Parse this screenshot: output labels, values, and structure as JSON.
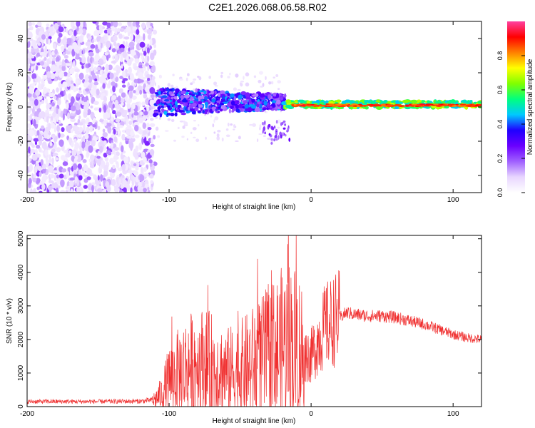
{
  "title": "C2E1.2026.068.06.58.R02",
  "colors": {
    "snr_line": "#f03030",
    "colormap": [
      "#ffffff",
      "#e8d6ff",
      "#a060ff",
      "#6a00ff",
      "#2000ff",
      "#00c8ff",
      "#00ff80",
      "#80ff00",
      "#ffff00",
      "#ff8000",
      "#ff0000",
      "#ff40a0"
    ]
  },
  "chart_data": [
    {
      "type": "heatmap",
      "xlabel": "Height of straight line (km)",
      "ylabel": "Frequency (Hz)",
      "xlim": [
        -200,
        120
      ],
      "ylim": [
        -50,
        50
      ],
      "xticks": [
        -200,
        -100,
        0,
        100
      ],
      "yticks": [
        -40,
        -20,
        0,
        20,
        40
      ],
      "colorbar": {
        "label": "Normalized spectral amplitude",
        "range": [
          0,
          1
        ],
        "ticks": [
          0.0,
          0.2,
          0.4,
          0.6,
          0.8
        ]
      },
      "features": [
        {
          "x_range": [
            -200,
            -110
          ],
          "y_range": [
            -50,
            50
          ],
          "amplitude": 0.1
        },
        {
          "x_range": [
            -110,
            -20
          ],
          "y_range": [
            -10,
            10
          ],
          "amplitude": 0.3
        },
        {
          "x_range": [
            -20,
            120
          ],
          "y_center": 1,
          "amplitude": 0.8
        }
      ]
    },
    {
      "type": "line",
      "xlabel": "Height of straight line (km)",
      "ylabel": "SNR (10 * v/v)",
      "xlim": [
        -200,
        120
      ],
      "ylim": [
        0,
        5100
      ],
      "xticks": [
        -200,
        -100,
        0,
        100
      ],
      "yticks": [
        0,
        1000,
        2000,
        3000,
        4000,
        5000
      ],
      "series": [
        {
          "x": [
            -200,
            -150,
            -120,
            -110,
            -105,
            -100,
            -90,
            -80,
            -70,
            -60,
            -50,
            -40,
            -30,
            -20,
            -15,
            -10,
            -5,
            0,
            5,
            10,
            20,
            25,
            30,
            40,
            50,
            60,
            70,
            80,
            90,
            100,
            110,
            120
          ],
          "y": [
            150,
            150,
            160,
            200,
            400,
            800,
            1100,
            1300,
            1200,
            1000,
            1100,
            1300,
            1500,
            1800,
            1900,
            1800,
            1600,
            1500,
            2000,
            2400,
            2650,
            2800,
            2750,
            2700,
            2700,
            2650,
            2550,
            2450,
            2300,
            2150,
            2050,
            2000
          ]
        }
      ]
    }
  ]
}
